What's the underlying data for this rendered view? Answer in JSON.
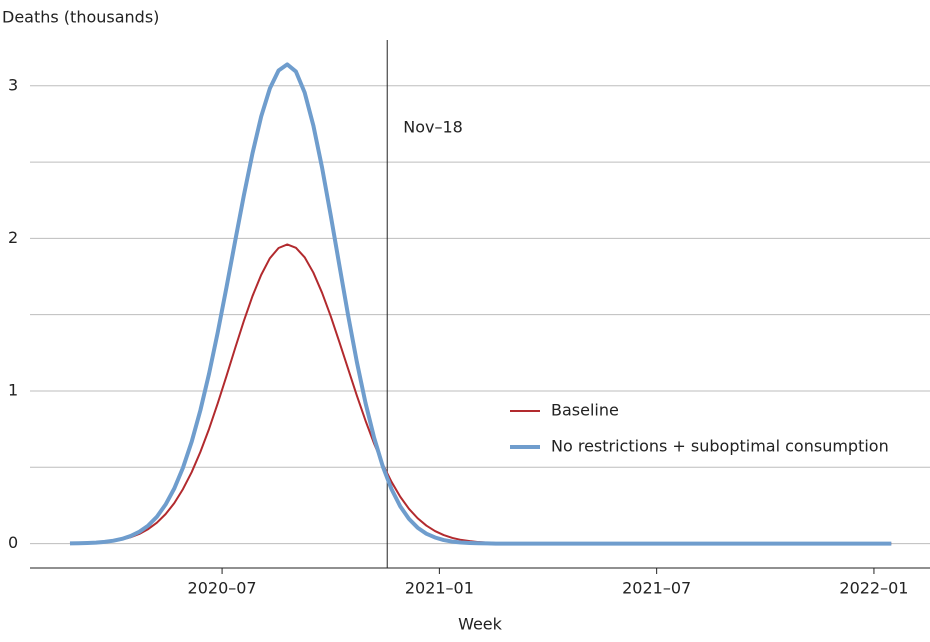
{
  "chart_data": {
    "type": "line",
    "y_label": "Deaths (thousands)",
    "x_label": "Week",
    "x": [
      2020.15,
      2020.17,
      2020.19,
      2020.21,
      2020.23,
      2020.25,
      2020.27,
      2020.29,
      2020.31,
      2020.33,
      2020.35,
      2020.37,
      2020.39,
      2020.41,
      2020.43,
      2020.45,
      2020.47,
      2020.49,
      2020.51,
      2020.53,
      2020.55,
      2020.57,
      2020.59,
      2020.61,
      2020.63,
      2020.65,
      2020.67,
      2020.69,
      2020.71,
      2020.73,
      2020.75,
      2020.77,
      2020.79,
      2020.81,
      2020.83,
      2020.85,
      2020.87,
      2020.89,
      2020.91,
      2020.93,
      2020.95,
      2020.97,
      2020.99,
      2021.01,
      2021.03,
      2021.05,
      2021.07,
      2021.09,
      2021.11,
      2021.13,
      2021.15,
      2021.17,
      2021.19,
      2021.21,
      2021.23,
      2021.25,
      2021.4,
      2021.6,
      2021.8,
      2022.04
    ],
    "series": [
      {
        "name": "Baseline",
        "color": "#b22a2e",
        "width": 2,
        "values": [
          0.001,
          0.002,
          0.004,
          0.006,
          0.011,
          0.017,
          0.027,
          0.042,
          0.064,
          0.095,
          0.137,
          0.193,
          0.265,
          0.357,
          0.468,
          0.6,
          0.751,
          0.919,
          1.097,
          1.28,
          1.458,
          1.622,
          1.761,
          1.87,
          1.937,
          1.96,
          1.938,
          1.876,
          1.776,
          1.644,
          1.49,
          1.32,
          1.145,
          0.971,
          0.806,
          0.654,
          0.519,
          0.404,
          0.307,
          0.228,
          0.166,
          0.118,
          0.082,
          0.056,
          0.037,
          0.024,
          0.016,
          0.01,
          0.006,
          0.004,
          0.002,
          0.001,
          0.001,
          0,
          0,
          0,
          0,
          0,
          0,
          0
        ]
      },
      {
        "name": "No restrictions + suboptimal consumption",
        "color": "#6f9dcd",
        "width": 4,
        "values": [
          0.001,
          0.002,
          0.004,
          0.006,
          0.011,
          0.019,
          0.031,
          0.05,
          0.078,
          0.118,
          0.176,
          0.256,
          0.361,
          0.497,
          0.667,
          0.873,
          1.113,
          1.384,
          1.677,
          1.981,
          2.28,
          2.558,
          2.799,
          2.983,
          3.1,
          3.14,
          3.093,
          2.956,
          2.74,
          2.465,
          2.151,
          1.822,
          1.496,
          1.192,
          0.922,
          0.692,
          0.504,
          0.356,
          0.244,
          0.162,
          0.104,
          0.065,
          0.04,
          0.023,
          0.013,
          0.007,
          0.004,
          0.002,
          0.001,
          0,
          0,
          0,
          0,
          0,
          0,
          0,
          0,
          0,
          0,
          0
        ]
      }
    ],
    "xlim": [
      2020.058,
      2022.129
    ],
    "xticks": [
      {
        "value": 2020.5,
        "label": "2020–07"
      },
      {
        "value": 2021.0,
        "label": "2021–01"
      },
      {
        "value": 2021.5,
        "label": "2021–07"
      },
      {
        "value": 2022.0,
        "label": "2022–01"
      }
    ],
    "ylim": [
      -0.16,
      3.3
    ],
    "yticks": [
      0,
      1,
      2,
      3
    ],
    "ygrid": [
      0,
      0.5,
      1,
      1.5,
      2,
      2.5,
      3
    ],
    "annotation": {
      "text": "Nov–18",
      "x": 2020.88
    },
    "legend": "right"
  }
}
